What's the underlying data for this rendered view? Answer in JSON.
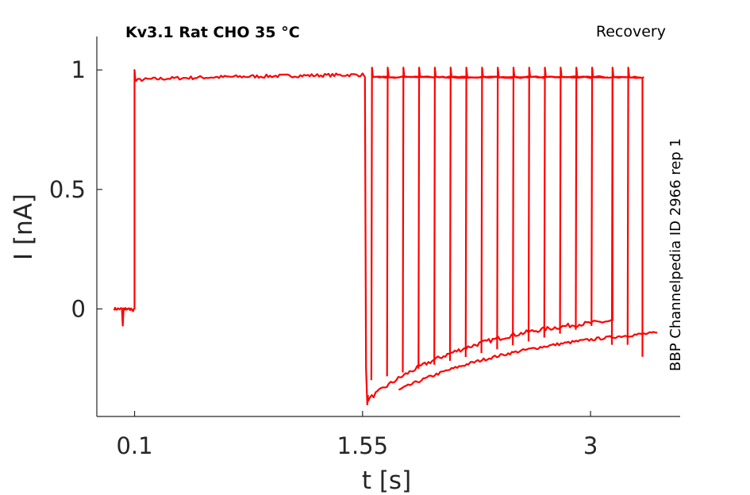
{
  "chart_data": {
    "type": "line",
    "title": "Kv3.1  Rat  CHO  35 °C",
    "protocol": "Recovery",
    "side_label": "BBP Channelpedia ID 2966 rep 1",
    "xlabel": "t [s]",
    "ylabel": "I [nA]",
    "x_ticks": [
      {
        "value": 0.1,
        "label": "0.1"
      },
      {
        "value": 1.55,
        "label": "1.55"
      },
      {
        "value": 3,
        "label": "3"
      }
    ],
    "y_ticks": [
      {
        "value": 0,
        "label": "0"
      },
      {
        "value": 0.5,
        "label": "0.5"
      },
      {
        "value": 1,
        "label": "1"
      }
    ],
    "xlim": [
      -0.14,
      3.57
    ],
    "ylim": [
      -0.45,
      1.14
    ],
    "grid": false,
    "color": "#ff0000",
    "holding_current": 0.0,
    "peak_current_start": 0.955,
    "peak_current_end": 0.98,
    "step_on_time": 0.1,
    "prepulse_end_time": 1.6,
    "recovery_pulse_starts": [
      1.61,
      1.71,
      1.81,
      1.91,
      2.01,
      2.11,
      2.21,
      2.31,
      2.41,
      2.51,
      2.61,
      2.71,
      2.81,
      2.91,
      3.01,
      3.14,
      3.24
    ],
    "recovery_pulse_ends": [
      3.14,
      3.33
    ],
    "recovery_pulse_level": 0.97,
    "tail_current_min": -0.38,
    "tail_current_end": -0.05,
    "tail_current_end_late": -0.1
  }
}
